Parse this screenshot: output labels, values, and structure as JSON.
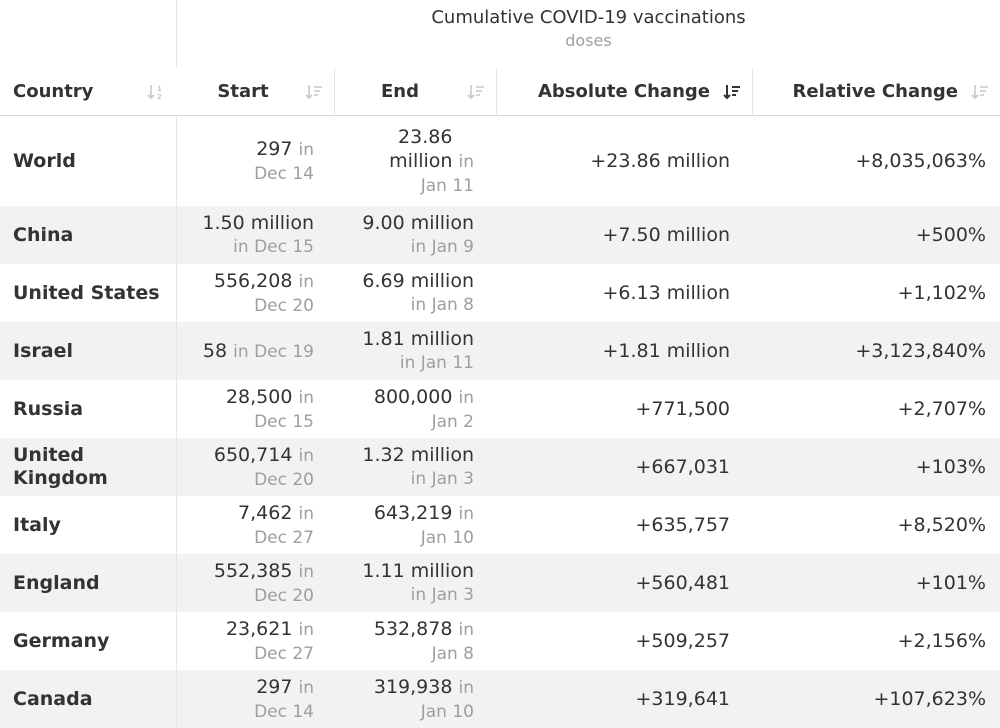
{
  "group_header": {
    "title": "Cumulative COVID-19 vaccinations",
    "unit": "doses"
  },
  "columns": {
    "country": "Country",
    "start": "Start",
    "end": "End",
    "absolute_change": "Absolute Change",
    "relative_change": "Relative Change"
  },
  "date_prefix": "in",
  "rows": [
    {
      "country": "World",
      "start_value": "297",
      "start_date": "Dec 14",
      "end_value": "23.86 million",
      "end_date": "Jan 11",
      "absolute_change": "+23.86 million",
      "relative_change": "+8,035,063%"
    },
    {
      "country": "China",
      "start_value": "1.50 million",
      "start_date": "Dec 15",
      "end_value": "9.00 million",
      "end_date": "Jan 9",
      "absolute_change": "+7.50 million",
      "relative_change": "+500%"
    },
    {
      "country": "United States",
      "start_value": "556,208",
      "start_date": "Dec 20",
      "end_value": "6.69 million",
      "end_date": "Jan 8",
      "absolute_change": "+6.13 million",
      "relative_change": "+1,102%"
    },
    {
      "country": "Israel",
      "start_value": "58",
      "start_date": "Dec 19",
      "end_value": "1.81 million",
      "end_date": "Jan 11",
      "absolute_change": "+1.81 million",
      "relative_change": "+3,123,840%"
    },
    {
      "country": "Russia",
      "start_value": "28,500",
      "start_date": "Dec 15",
      "end_value": "800,000",
      "end_date": "Jan 2",
      "absolute_change": "+771,500",
      "relative_change": "+2,707%"
    },
    {
      "country": "United Kingdom",
      "start_value": "650,714",
      "start_date": "Dec 20",
      "end_value": "1.32 million",
      "end_date": "Jan 3",
      "absolute_change": "+667,031",
      "relative_change": "+103%"
    },
    {
      "country": "Italy",
      "start_value": "7,462",
      "start_date": "Dec 27",
      "end_value": "643,219",
      "end_date": "Jan 10",
      "absolute_change": "+635,757",
      "relative_change": "+8,520%"
    },
    {
      "country": "England",
      "start_value": "552,385",
      "start_date": "Dec 20",
      "end_value": "1.11 million",
      "end_date": "Jan 3",
      "absolute_change": "+560,481",
      "relative_change": "+101%"
    },
    {
      "country": "Germany",
      "start_value": "23,621",
      "start_date": "Dec 27",
      "end_value": "532,878",
      "end_date": "Jan 8",
      "absolute_change": "+509,257",
      "relative_change": "+2,156%"
    },
    {
      "country": "Canada",
      "start_value": "297",
      "start_date": "Dec 14",
      "end_value": "319,938",
      "end_date": "Jan 10",
      "absolute_change": "+319,641",
      "relative_change": "+107,623%"
    }
  ],
  "colors": {
    "text": "#333333",
    "muted": "#9e9e9e",
    "alt_row": "#f2f2f2",
    "active_sort_icon": "#333333",
    "inactive_sort_icon": "#c8c8c8"
  },
  "icons": {
    "sort_active": "sort-descending-icon",
    "sort_inactive": "sort-icon"
  }
}
